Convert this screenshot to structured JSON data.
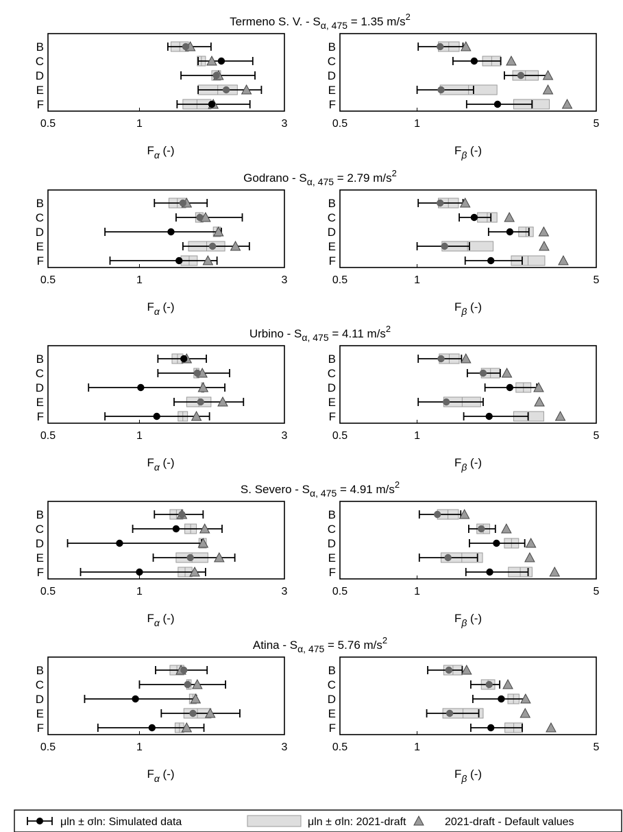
{
  "figure": {
    "colors": {
      "box_fill": "#dedede",
      "box_stroke": "#9a9a9a",
      "triangle_fill": "#9b9b9b",
      "marker": "#000000",
      "marker_gray": "#666666"
    },
    "legend": {
      "item1": "μln ± σln: Simulated data",
      "item2": "μln ± σln: 2021-draft",
      "item3": "2021-draft - Default values"
    }
  },
  "chart_data": [
    {
      "type": "box-errorbar",
      "title": "Termeno S. V. - Sα, 475 = 1.35 m/s²",
      "categories": [
        "B",
        "C",
        "D",
        "E",
        "F"
      ],
      "panels": [
        {
          "xlabel": "Fα (-)",
          "xscale": "log",
          "xlim": [
            0.5,
            3
          ],
          "xticks": [
            "0.5",
            "1",
            "3"
          ],
          "simulated_mean": [
            1.42,
            1.86,
            1.79,
            1.93,
            1.73
          ],
          "simulated_low": [
            1.24,
            1.56,
            1.37,
            1.56,
            1.33
          ],
          "simulated_high": [
            1.72,
            2.36,
            2.4,
            2.52,
            2.31
          ],
          "draft_low": [
            1.27,
            1.55,
            1.73,
            1.56,
            1.39
          ],
          "draft_high": [
            1.45,
            1.65,
            1.85,
            2.1,
            1.72
          ],
          "default_value": [
            1.47,
            1.73,
            1.82,
            2.25,
            1.75
          ]
        },
        {
          "xlabel": "Fβ (-)",
          "xscale": "log",
          "xlim": [
            0.5,
            5
          ],
          "xticks": [
            "0.5",
            "1",
            "5"
          ],
          "simulated_mean": [
            1.23,
            1.67,
            2.54,
            1.24,
            2.06
          ],
          "simulated_low": [
            1.01,
            1.38,
            2.19,
            1.0,
            1.56
          ],
          "simulated_high": [
            1.51,
            2.12,
            3.25,
            1.66,
            2.81
          ],
          "draft_low": [
            1.21,
            1.8,
            2.36,
            1.23,
            2.38
          ],
          "draft_high": [
            1.46,
            2.12,
            2.97,
            2.05,
            3.28
          ],
          "default_value": [
            1.55,
            2.33,
            3.24,
            3.24,
            3.85
          ]
        }
      ]
    },
    {
      "type": "box-errorbar",
      "title": "Godrano - Sα, 475 = 2.79 m/s²",
      "categories": [
        "B",
        "C",
        "D",
        "E",
        "F"
      ],
      "panels": [
        {
          "xlabel": "Fα (-)",
          "xscale": "log",
          "xlim": [
            0.5,
            3
          ],
          "xticks": [
            "0.5",
            "1",
            "3"
          ],
          "simulated_mean": [
            1.39,
            1.58,
            1.27,
            1.74,
            1.35
          ],
          "simulated_low": [
            1.12,
            1.32,
            0.77,
            1.39,
            0.8
          ],
          "simulated_high": [
            1.67,
            2.18,
            1.86,
            2.3,
            1.8
          ],
          "draft_low": [
            1.25,
            1.53,
            1.75,
            1.45,
            1.37
          ],
          "draft_high": [
            1.42,
            1.62,
            1.85,
            1.91,
            1.55
          ],
          "default_value": [
            1.43,
            1.65,
            1.82,
            2.07,
            1.68
          ]
        },
        {
          "xlabel": "Fβ (-)",
          "xscale": "log",
          "xlim": [
            0.5,
            5
          ],
          "xticks": [
            "0.5",
            "1",
            "5"
          ],
          "simulated_mean": [
            1.23,
            1.67,
            2.3,
            1.28,
            1.94
          ],
          "simulated_low": [
            1.01,
            1.46,
            1.9,
            1.0,
            1.54
          ],
          "simulated_high": [
            1.51,
            1.94,
            2.73,
            1.6,
            2.57
          ],
          "draft_low": [
            1.21,
            1.72,
            2.49,
            1.25,
            2.33
          ],
          "draft_high": [
            1.45,
            2.05,
            2.84,
            1.98,
            3.15
          ],
          "default_value": [
            1.54,
            2.29,
            3.12,
            3.13,
            3.72
          ]
        }
      ]
    },
    {
      "type": "box-errorbar",
      "title": "Urbino - Sα, 475 = 4.11 m/s²",
      "categories": [
        "B",
        "C",
        "D",
        "E",
        "F"
      ],
      "panels": [
        {
          "xlabel": "Fα (-)",
          "xscale": "log",
          "xlim": [
            0.5,
            3
          ],
          "xticks": [
            "0.5",
            "1",
            "3"
          ],
          "simulated_mean": [
            1.4,
            1.55,
            1.01,
            1.59,
            1.14
          ],
          "simulated_low": [
            1.15,
            1.15,
            0.68,
            1.3,
            0.77
          ],
          "simulated_high": [
            1.66,
            1.98,
            1.91,
            2.2,
            1.7
          ],
          "draft_low": [
            1.28,
            1.51,
            1.6,
            1.43,
            1.34
          ],
          "draft_high": [
            1.39,
            1.57,
            1.63,
            1.72,
            1.44
          ],
          "default_value": [
            1.43,
            1.61,
            1.62,
            1.88,
            1.54
          ]
        },
        {
          "xlabel": "Fβ (-)",
          "xscale": "log",
          "xlim": [
            0.5,
            5
          ],
          "xticks": [
            "0.5",
            "1",
            "5"
          ],
          "simulated_mean": [
            1.24,
            1.81,
            2.3,
            1.3,
            1.91
          ],
          "simulated_low": [
            1.01,
            1.57,
            1.84,
            1.01,
            1.52
          ],
          "simulated_high": [
            1.49,
            2.11,
            2.93,
            1.81,
            2.71
          ],
          "draft_low": [
            1.22,
            1.78,
            2.43,
            1.27,
            2.38
          ],
          "draft_high": [
            1.46,
            2.1,
            2.78,
            1.77,
            3.12
          ],
          "default_value": [
            1.55,
            2.24,
            2.98,
            3.0,
            3.62
          ]
        }
      ]
    },
    {
      "type": "box-errorbar",
      "title": "S. Severo - Sα, 475 = 4.91 m/s²",
      "categories": [
        "B",
        "C",
        "D",
        "E",
        "F"
      ],
      "panels": [
        {
          "xlabel": "Fα (-)",
          "xscale": "log",
          "xlim": [
            0.5,
            3
          ],
          "xticks": [
            "0.5",
            "1",
            "3"
          ],
          "simulated_mean": [
            1.38,
            1.32,
            0.86,
            1.47,
            1.0
          ],
          "simulated_low": [
            1.12,
            0.95,
            0.58,
            1.11,
            0.64
          ],
          "simulated_high": [
            1.62,
            1.87,
            1.6,
            2.06,
            1.65
          ],
          "draft_low": [
            1.26,
            1.41,
            1.57,
            1.32,
            1.34
          ],
          "draft_high": [
            1.39,
            1.54,
            1.66,
            1.68,
            1.49
          ],
          "default_value": [
            1.38,
            1.64,
            1.62,
            1.83,
            1.52
          ]
        },
        {
          "xlabel": "Fβ (-)",
          "xscale": "log",
          "xlim": [
            0.5,
            5
          ],
          "xticks": [
            "0.5",
            "1",
            "5"
          ],
          "simulated_mean": [
            1.2,
            1.78,
            2.04,
            1.32,
            1.92
          ],
          "simulated_low": [
            1.02,
            1.59,
            1.6,
            1.02,
            1.55
          ],
          "simulated_high": [
            1.48,
            2.02,
            2.63,
            1.72,
            2.71
          ],
          "draft_low": [
            1.2,
            1.71,
            2.19,
            1.24,
            2.27
          ],
          "draft_high": [
            1.45,
            1.92,
            2.49,
            1.8,
            2.81
          ],
          "default_value": [
            1.53,
            2.23,
            2.78,
            2.75,
            3.44
          ]
        }
      ]
    },
    {
      "type": "box-errorbar",
      "title": "Atina - Sα, 475 = 5.76 m/s²",
      "categories": [
        "B",
        "C",
        "D",
        "E",
        "F"
      ],
      "panels": [
        {
          "xlabel": "Fα (-)",
          "xscale": "log",
          "xlim": [
            0.5,
            3
          ],
          "xticks": [
            "0.5",
            "1",
            "3"
          ],
          "simulated_mean": [
            1.4,
            1.44,
            0.97,
            1.5,
            1.1
          ],
          "simulated_low": [
            1.13,
            1.0,
            0.66,
            1.18,
            0.73
          ],
          "simulated_high": [
            1.67,
            1.92,
            1.54,
            2.14,
            1.63
          ],
          "draft_low": [
            1.26,
            1.43,
            1.46,
            1.4,
            1.31
          ],
          "draft_high": [
            1.4,
            1.48,
            1.54,
            1.72,
            1.4
          ],
          "default_value": [
            1.37,
            1.55,
            1.53,
            1.71,
            1.43
          ]
        },
        {
          "xlabel": "Fβ (-)",
          "xscale": "log",
          "xlim": [
            0.5,
            5
          ],
          "xticks": [
            "0.5",
            "1",
            "5"
          ],
          "simulated_mean": [
            1.33,
            1.91,
            2.13,
            1.34,
            1.94
          ],
          "simulated_low": [
            1.1,
            1.62,
            1.65,
            1.09,
            1.62
          ],
          "simulated_high": [
            1.5,
            2.1,
            2.64,
            1.74,
            2.57
          ],
          "draft_low": [
            1.27,
            1.78,
            2.26,
            1.26,
            2.2
          ],
          "draft_high": [
            1.5,
            2.01,
            2.5,
            1.81,
            2.58
          ],
          "default_value": [
            1.56,
            2.26,
            2.65,
            2.64,
            3.33
          ]
        }
      ]
    }
  ]
}
